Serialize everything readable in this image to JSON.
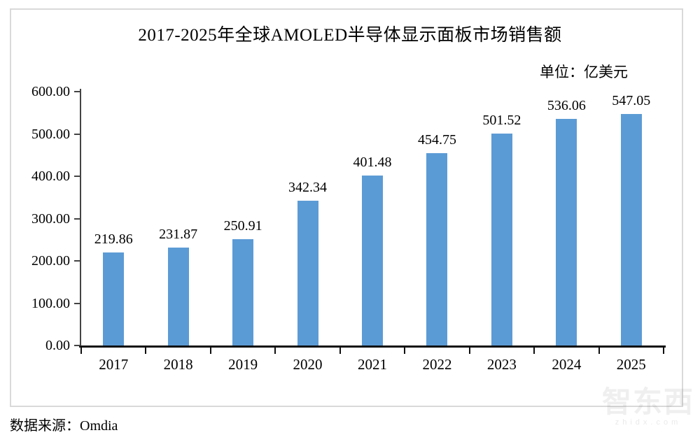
{
  "title": "2017-2025年全球AMOLED半导体显示面板市场销售额",
  "unit_label": "单位：亿美元",
  "source_label": "数据来源：Omdia",
  "watermark": {
    "text": "智东西",
    "subtext": "zhidx.com"
  },
  "colors": {
    "bar": "#5b9bd5",
    "axis": "#0f0f0f",
    "frame_border": "#d9d9d9"
  },
  "chart_data": {
    "type": "bar",
    "title": "2017-2025年全球AMOLED半导体显示面板市场销售额",
    "unit": "亿美元",
    "categories": [
      "2017",
      "2018",
      "2019",
      "2020",
      "2021",
      "2022",
      "2023",
      "2024",
      "2025"
    ],
    "values": [
      219.86,
      231.87,
      250.91,
      342.34,
      401.48,
      454.75,
      501.52,
      536.06,
      547.05
    ],
    "value_labels": [
      "219.86",
      "231.87",
      "250.91",
      "342.34",
      "401.48",
      "454.75",
      "501.52",
      "536.06",
      "547.05"
    ],
    "xlabel": "",
    "ylabel": "单位：亿美元",
    "ylim": [
      0,
      600
    ],
    "ytick_step": 100,
    "ytick_labels": [
      "600.00",
      "500.00",
      "400.00",
      "300.00",
      "200.00",
      "100.00",
      "0.00"
    ],
    "grid": false,
    "legend": "none",
    "data_labels": true,
    "source": "Omdia"
  }
}
